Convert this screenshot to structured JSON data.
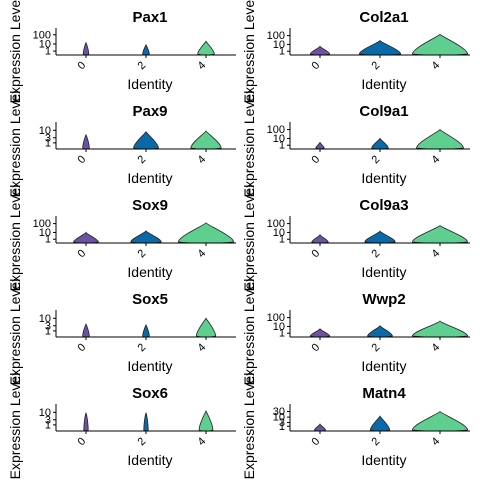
{
  "colors": {
    "0": "#6b52a3",
    "2": "#0a6aa8",
    "4": "#5fcf8f"
  },
  "chart_data": [
    {
      "type": "violin",
      "title": "Pax1",
      "xlabel": "Identity",
      "ylabel": "Expression Level",
      "categories": [
        "0",
        "2",
        "4"
      ],
      "yscale": "log1p",
      "yticks": [
        1,
        10,
        100
      ],
      "ylim": [
        0,
        120
      ],
      "series": [
        {
          "category": "0",
          "max": 14,
          "width": 0.1
        },
        {
          "category": "2",
          "max": 8,
          "width": 0.12
        },
        {
          "category": "4",
          "max": 20,
          "width": 0.3
        }
      ]
    },
    {
      "type": "violin",
      "title": "Col2a1",
      "xlabel": "Identity",
      "ylabel": "Expression Level",
      "categories": [
        "0",
        "2",
        "4"
      ],
      "yscale": "log1p",
      "yticks": [
        1,
        10,
        100
      ],
      "ylim": [
        0,
        150
      ],
      "series": [
        {
          "category": "0",
          "max": 6,
          "width": 0.35
        },
        {
          "category": "2",
          "max": 28,
          "width": 0.75
        },
        {
          "category": "4",
          "max": 140,
          "width": 1.0
        }
      ]
    },
    {
      "type": "violin",
      "title": "Pax9",
      "xlabel": "Identity",
      "ylabel": "Expression Level",
      "categories": [
        "0",
        "2",
        "4"
      ],
      "yscale": "log1p",
      "yticks": [
        1,
        3,
        10
      ],
      "ylim": [
        0,
        14
      ],
      "series": [
        {
          "category": "0",
          "max": 5,
          "width": 0.12
        },
        {
          "category": "2",
          "max": 8,
          "width": 0.45
        },
        {
          "category": "4",
          "max": 9,
          "width": 0.55
        }
      ]
    },
    {
      "type": "violin",
      "title": "Col9a1",
      "xlabel": "Identity",
      "ylabel": "Expression Level",
      "categories": [
        "0",
        "2",
        "4"
      ],
      "yscale": "log1p",
      "yticks": [
        1,
        10,
        100
      ],
      "ylim": [
        0,
        150
      ],
      "series": [
        {
          "category": "0",
          "max": 3,
          "width": 0.15
        },
        {
          "category": "2",
          "max": 10,
          "width": 0.3
        },
        {
          "category": "4",
          "max": 100,
          "width": 0.85
        }
      ]
    },
    {
      "type": "violin",
      "title": "Sox9",
      "xlabel": "Identity",
      "ylabel": "Expression Level",
      "categories": [
        "0",
        "2",
        "4"
      ],
      "yscale": "log1p",
      "yticks": [
        1,
        10,
        100
      ],
      "ylim": [
        0,
        150
      ],
      "series": [
        {
          "category": "0",
          "max": 10,
          "width": 0.45
        },
        {
          "category": "2",
          "max": 15,
          "width": 0.55
        },
        {
          "category": "4",
          "max": 120,
          "width": 1.0
        }
      ]
    },
    {
      "type": "violin",
      "title": "Col9a3",
      "xlabel": "Identity",
      "ylabel": "Expression Level",
      "categories": [
        "0",
        "2",
        "4"
      ],
      "yscale": "log1p",
      "yticks": [
        1,
        10,
        100
      ],
      "ylim": [
        0,
        150
      ],
      "series": [
        {
          "category": "0",
          "max": 5,
          "width": 0.3
        },
        {
          "category": "2",
          "max": 14,
          "width": 0.55
        },
        {
          "category": "4",
          "max": 60,
          "width": 1.0
        }
      ]
    },
    {
      "type": "violin",
      "title": "Sox5",
      "xlabel": "Identity",
      "ylabel": "Expression Level",
      "categories": [
        "0",
        "2",
        "4"
      ],
      "yscale": "log1p",
      "yticks": [
        1,
        3,
        10
      ],
      "ylim": [
        0,
        14
      ],
      "series": [
        {
          "category": "0",
          "max": 4,
          "width": 0.12
        },
        {
          "category": "2",
          "max": 3.5,
          "width": 0.12
        },
        {
          "category": "4",
          "max": 10,
          "width": 0.35
        }
      ]
    },
    {
      "type": "violin",
      "title": "Wwp2",
      "xlabel": "Identity",
      "ylabel": "Expression Level",
      "categories": [
        "0",
        "2",
        "4"
      ],
      "yscale": "log1p",
      "yticks": [
        1,
        10,
        100
      ],
      "ylim": [
        0,
        150
      ],
      "series": [
        {
          "category": "0",
          "max": 5,
          "width": 0.35
        },
        {
          "category": "2",
          "max": 12,
          "width": 0.45
        },
        {
          "category": "4",
          "max": 40,
          "width": 1.0
        }
      ]
    },
    {
      "type": "violin",
      "title": "Sox6",
      "xlabel": "Identity",
      "ylabel": "Expression Level",
      "categories": [
        "0",
        "2",
        "4"
      ],
      "yscale": "log1p",
      "yticks": [
        1,
        3,
        10
      ],
      "ylim": [
        0,
        14
      ],
      "series": [
        {
          "category": "0",
          "max": 9,
          "width": 0.08
        },
        {
          "category": "2",
          "max": 9,
          "width": 0.08
        },
        {
          "category": "4",
          "max": 12,
          "width": 0.25
        }
      ]
    },
    {
      "type": "violin",
      "title": "Matn4",
      "xlabel": "Identity",
      "ylabel": "Expression Level",
      "categories": [
        "0",
        "2",
        "4"
      ],
      "yscale": "log1p",
      "yticks": [
        1,
        3,
        10,
        30
      ],
      "ylim": [
        0,
        40
      ],
      "series": [
        {
          "category": "0",
          "max": 2,
          "width": 0.2
        },
        {
          "category": "2",
          "max": 12,
          "width": 0.35
        },
        {
          "category": "4",
          "max": 30,
          "width": 1.0
        }
      ]
    }
  ]
}
